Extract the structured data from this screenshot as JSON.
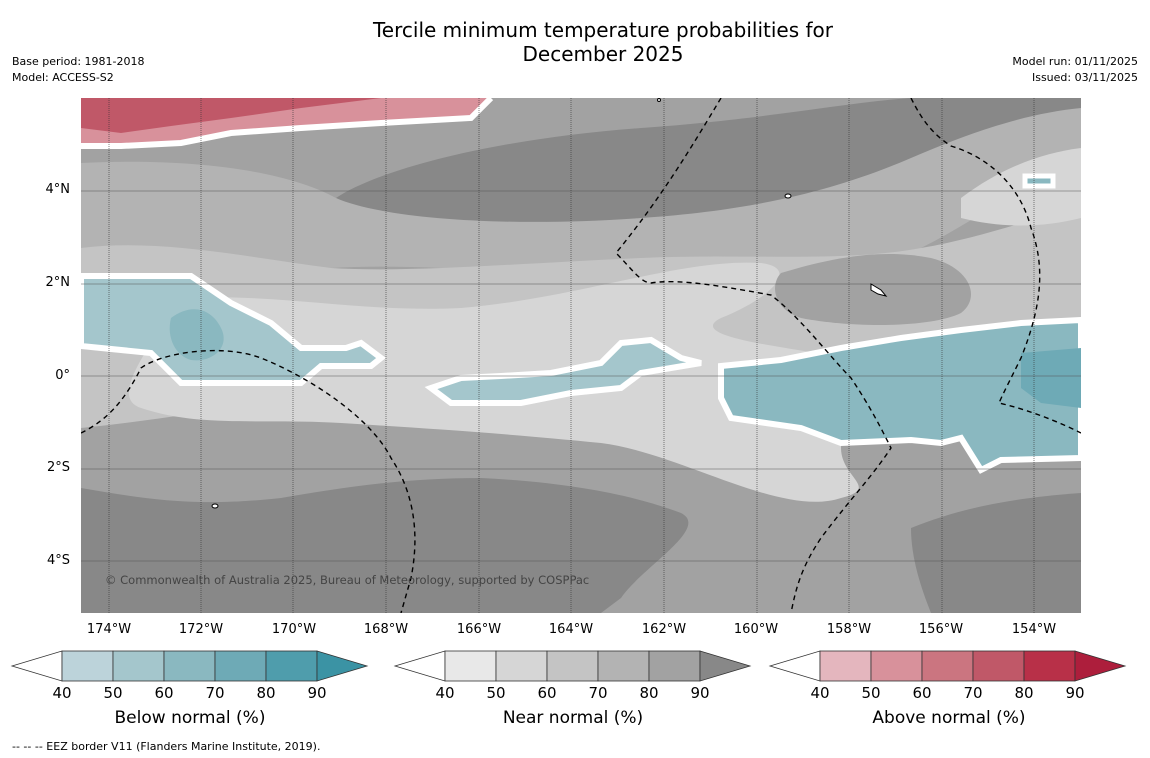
{
  "title": {
    "line1": "Tercile minimum temperature probabilities for",
    "line2": "December 2025"
  },
  "meta_left": {
    "base_period": "Base period: 1981-2018",
    "model": "Model: ACCESS-S2"
  },
  "meta_right": {
    "model_run": "Model run: 01/11/2025",
    "issued": "Issued: 03/11/2025"
  },
  "map": {
    "copyright": "© Commonwealth of Australia 2025, Bureau of Meteorology, supported by COSPPac",
    "lat_labels": [
      "4°N",
      "2°N",
      "0°",
      "2°S",
      "4°S"
    ],
    "lon_labels": [
      "174°W",
      "172°W",
      "170°W",
      "168°W",
      "166°W",
      "164°W",
      "162°W",
      "160°W",
      "158°W",
      "156°W",
      "154°W"
    ]
  },
  "colorbars": {
    "below": {
      "label": "Below normal (%)",
      "ticks": [
        "40",
        "50",
        "60",
        "70",
        "80",
        "90"
      ],
      "colors": [
        "#ffffff",
        "#bcd3da",
        "#a4c6cc",
        "#8ab8c0",
        "#6eaab6",
        "#4f9dac",
        "#3b93a4"
      ]
    },
    "near": {
      "label": "Near normal (%)",
      "ticks": [
        "40",
        "50",
        "60",
        "70",
        "80",
        "90"
      ],
      "colors": [
        "#ffffff",
        "#e8e8e8",
        "#d6d6d6",
        "#c4c4c4",
        "#b3b3b3",
        "#a2a2a2",
        "#888888"
      ]
    },
    "above": {
      "label": "Above normal (%)",
      "ticks": [
        "40",
        "50",
        "60",
        "70",
        "80",
        "90"
      ],
      "colors": [
        "#ffffff",
        "#e4b6be",
        "#d8919b",
        "#cb7580",
        "#c05868",
        "#b83048",
        "#ad1e3c"
      ]
    }
  },
  "footer": "--  --  -- EEZ border V11 (Flanders Marine Institute, 2019)."
}
